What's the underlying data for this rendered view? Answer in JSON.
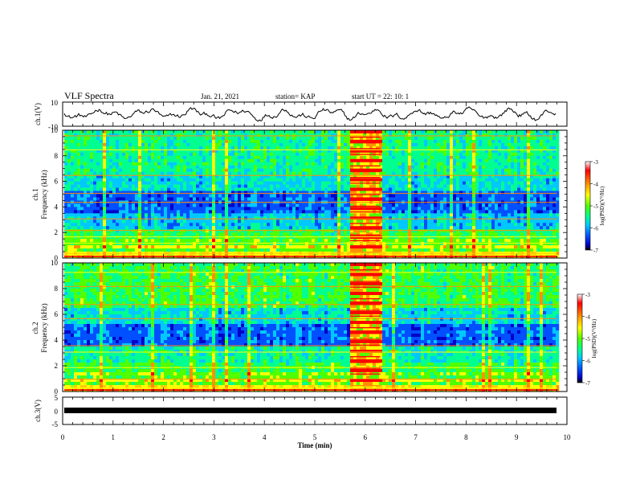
{
  "header": {
    "title": "VLF Spectra",
    "date": "Jan. 21, 2021",
    "station": "station= KAP",
    "start": "start  UT =  22: 10: 1"
  },
  "colorbar": {
    "label": "log(PSD)(V²/Hz)",
    "ticks": [
      -3,
      -4,
      -5,
      -6,
      -7
    ],
    "colors": [
      "#000000",
      "#0000c8",
      "#0050ff",
      "#00c8ff",
      "#00ff90",
      "#50ff00",
      "#ffff00",
      "#ff9000",
      "#ff0000",
      "#ffffff"
    ]
  },
  "chart_data": [
    {
      "type": "line",
      "name": "ch1-waveform",
      "ylabel": "ch.1(V)",
      "ylim": [
        -10,
        10
      ],
      "yticks": [
        "10",
        "-10"
      ],
      "xlim": [
        0,
        10
      ],
      "series": [
        {
          "description_range": [
            -5,
            5
          ]
        }
      ]
    },
    {
      "type": "heatmap",
      "name": "ch1-spectrogram",
      "ylabel_line1": "ch.1",
      "ylabel_line2": "Frequency (kHz)",
      "ylim": [
        0,
        10
      ],
      "yticks": [
        "10",
        "8",
        "6",
        "4",
        "2",
        "0"
      ],
      "xlim": [
        0,
        10
      ],
      "data_end_x": 9.8,
      "interference_band_x": [
        5.7,
        6.3
      ],
      "colorbar_range": [
        -7,
        -3
      ]
    },
    {
      "type": "heatmap",
      "name": "ch2-spectrogram",
      "ylabel_line1": "ch.2",
      "ylabel_line2": "Frequency (kHz)",
      "ylim": [
        0,
        10
      ],
      "yticks": [
        "10",
        "8",
        "6",
        "4",
        "2",
        "0"
      ],
      "xlim": [
        0,
        10
      ],
      "data_end_x": 9.8,
      "interference_band_x": [
        5.7,
        6.3
      ],
      "colorbar_range": [
        -7,
        -3
      ]
    },
    {
      "type": "line",
      "name": "ch3-waveform",
      "ylabel": "ch.3(V)",
      "ylim": [
        -5,
        5
      ],
      "yticks": [
        "5",
        "0",
        "-5"
      ],
      "xlim": [
        0,
        10
      ],
      "xlabel": "Time (min)",
      "xticks": [
        "0",
        "1",
        "2",
        "3",
        "4",
        "5",
        "6",
        "7",
        "8",
        "9",
        "10"
      ]
    }
  ]
}
